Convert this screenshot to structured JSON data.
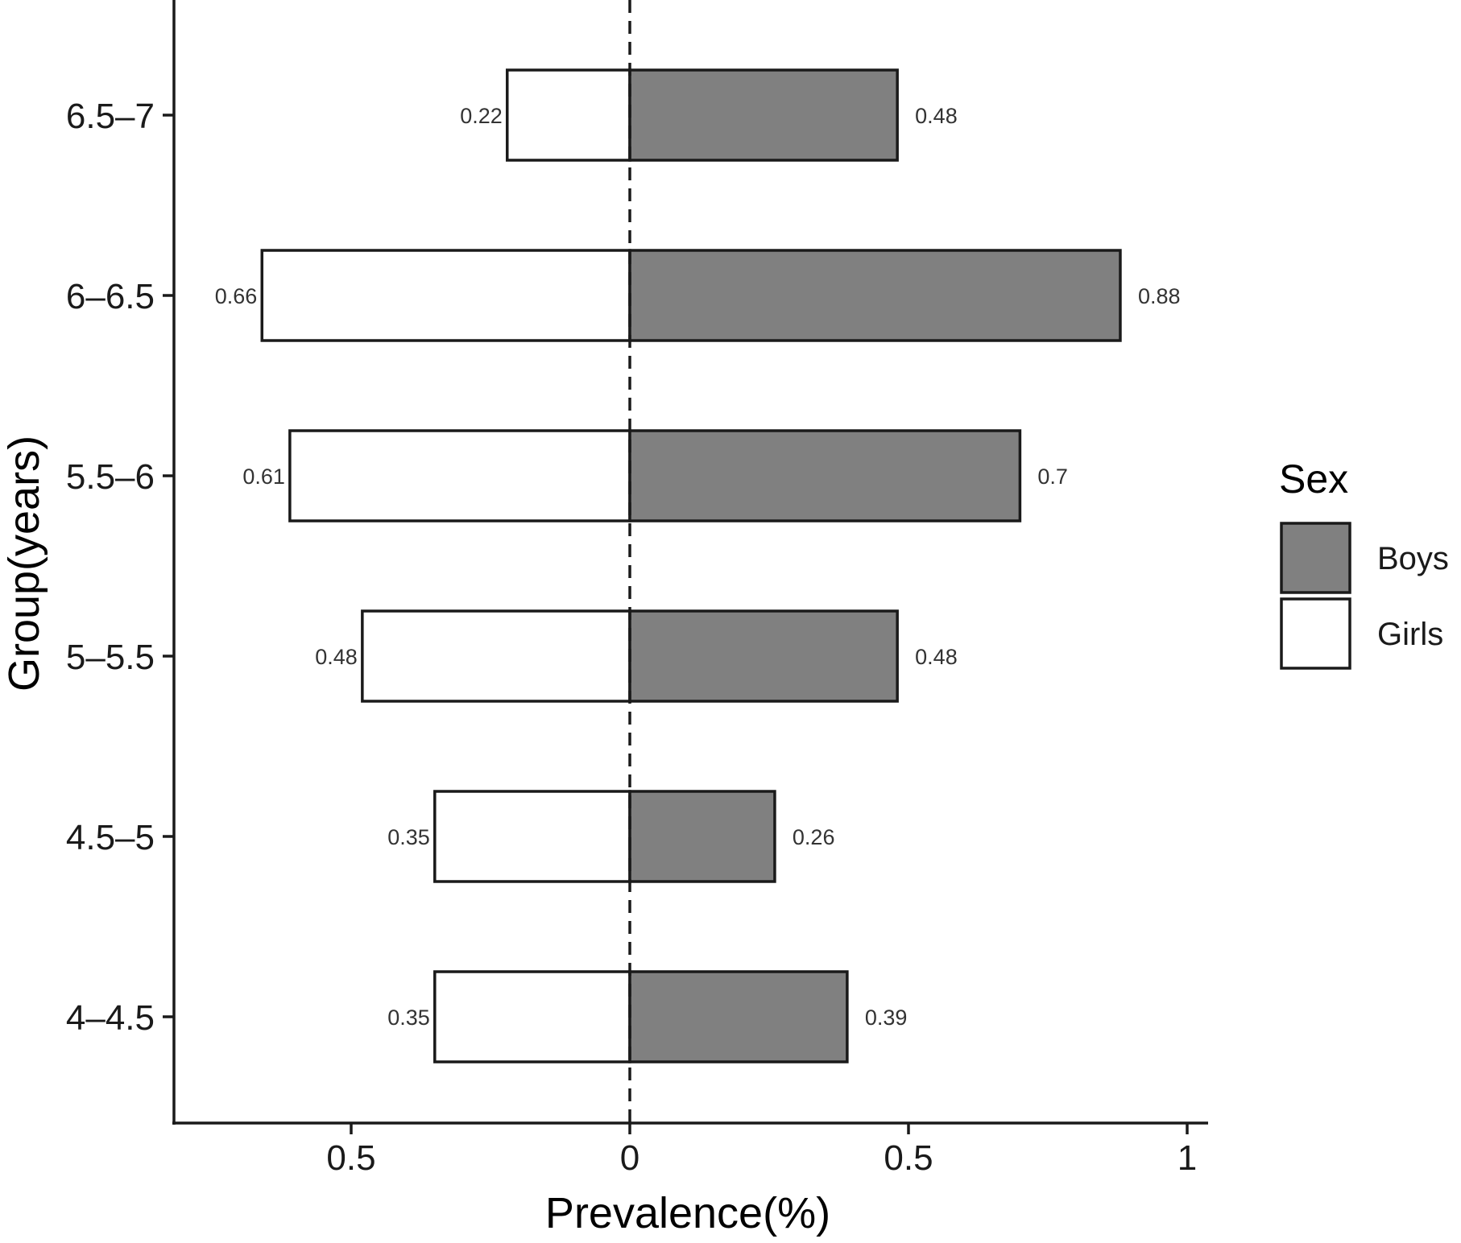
{
  "chart_data": {
    "type": "bar",
    "orientation": "horizontal",
    "layout": "diverging",
    "categories": [
      "4–4.5",
      "4.5–5",
      "5–5.5",
      "5.5–6",
      "6–6.5",
      "6.5–7"
    ],
    "series": [
      {
        "name": "Boys",
        "side": "right",
        "color": "#808080",
        "values": [
          0.39,
          0.26,
          0.48,
          0.7,
          0.88,
          0.48
        ]
      },
      {
        "name": "Girls",
        "side": "left",
        "color": "#ffffff",
        "values": [
          0.35,
          0.35,
          0.48,
          0.61,
          0.66,
          0.22
        ]
      }
    ],
    "data_labels": {
      "Boys": [
        "0.39",
        "0.26",
        "0.48",
        "0.7",
        "0.88",
        "0.48"
      ],
      "Girls": [
        "0.35",
        "0.35",
        "0.48",
        "0.61",
        "0.66",
        "0.22"
      ]
    },
    "x_ticks": [
      {
        "value": -0.5,
        "label": "0.5"
      },
      {
        "value": 0,
        "label": "0"
      },
      {
        "value": 0.5,
        "label": "0.5"
      },
      {
        "value": 1,
        "label": "1"
      }
    ],
    "xlim": [
      -0.815,
      1.035
    ],
    "xlabel": "Prevalence(%)",
    "ylabel": "Group(years)",
    "zero_line": "dashed",
    "grid": false,
    "legend": {
      "title": "Sex",
      "position": "right",
      "entries": [
        "Boys",
        "Girls"
      ]
    },
    "colors": {
      "boys": "#808080",
      "girls": "#ffffff",
      "outline": "#1a1a1a"
    }
  }
}
